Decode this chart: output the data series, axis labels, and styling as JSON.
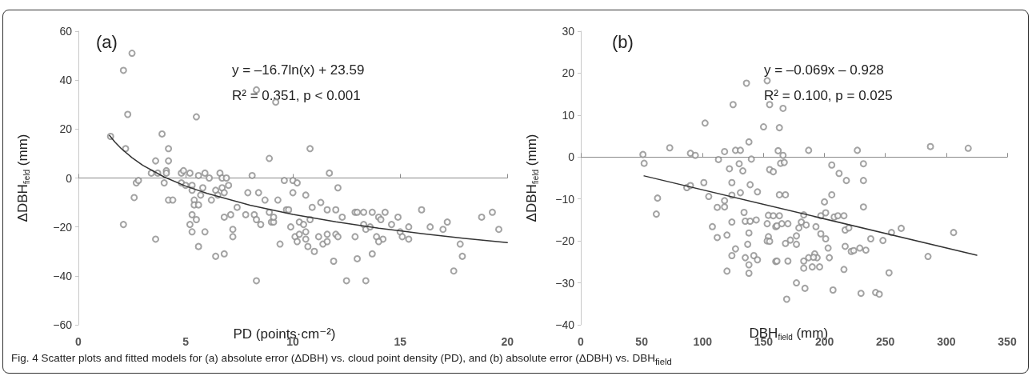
{
  "chart_data": [
    {
      "type": "scatter",
      "xlabel": "PD (points·cm⁻²)",
      "ylabel": "ΔDBH$_{field}$ (mm)",
      "xlim": [
        0,
        20
      ],
      "xticks": [
        0,
        5,
        10,
        15,
        20
      ],
      "ylim": [
        -60,
        60
      ],
      "yticks": [
        -60,
        -40,
        -20,
        0,
        20,
        40,
        60
      ],
      "annotations": [
        "(a)",
        "y = –16.7ln(x) + 23.59",
        "R² = 0.351, p < 0.001",
        "Fig. 4 Scatter plots and fitted models for (a) absolute error (ΔDBH) vs. cloud point density (PD), and (b) absolute error (ΔDBH) vs. DBH$_{field}$"
      ],
      "series": [
        {
          "marker": "circle",
          "color": "#8c8c8c",
          "x": [
            1.5,
            2.1,
            2.5,
            2.3,
            2.2,
            2.1,
            2.6,
            2.7,
            2.8,
            3.6,
            3.6,
            3.9,
            3.4,
            3.7,
            4.0,
            4.1,
            4.2,
            4.2,
            4.1,
            4.2,
            4.4,
            4.8,
            4.8,
            4.9,
            5.2,
            5.0,
            5.3,
            5.3,
            5.5,
            5.6,
            5.9,
            6.1,
            6.6,
            6.7,
            6.9,
            5.8,
            5.7,
            6.2,
            6.4,
            6.5,
            6.7,
            6.8,
            7.0,
            5.4,
            5.4,
            5.6,
            5.3,
            5.5,
            5.2,
            5.3,
            5.9,
            5.6,
            6.4,
            6.8,
            6.8,
            7.1,
            7.2,
            7.2,
            7.4,
            7.8,
            7.9,
            8.1,
            8.2,
            8.3,
            8.4,
            8.5,
            8.3,
            8.3,
            8.7,
            8.9,
            8.9,
            9.0,
            9.1,
            9.1,
            9.2,
            9.3,
            9.4,
            9.6,
            9.7,
            10.8,
            11.7,
            10.0,
            10.2,
            10.0,
            10.6,
            12.1,
            9.8,
            10.9,
            11.3,
            10.3,
            10.5,
            10.8,
            9.9,
            10.6,
            10.1,
            10.3,
            10.2,
            10.6,
            10.7,
            11.0,
            11.6,
            12.0,
            12.3,
            11.2,
            11.6,
            11.4,
            11.6,
            12.0,
            12.1,
            11.9,
            12.9,
            13.0,
            13.3,
            13.7,
            14.3,
            14.0,
            14.1,
            13.3,
            13.4,
            13.6,
            12.9,
            13.9,
            14.2,
            14.0,
            13.0,
            13.7,
            12.5,
            13.4,
            14.9,
            14.6,
            15.0,
            15.4,
            15.1,
            15.4,
            16.0,
            16.4,
            17.0,
            17.2,
            17.8,
            17.9,
            17.5,
            18.8,
            19.3,
            19.6
          ],
          "values": [
            17,
            44,
            51,
            26,
            12,
            -19,
            -8,
            -2,
            -1,
            7,
            -25,
            18,
            2,
            2,
            -2,
            3,
            7,
            12,
            2,
            -9,
            -9,
            2,
            -2,
            3,
            2,
            -3,
            -3,
            -5,
            25,
            1,
            2,
            0,
            2,
            0,
            0,
            -4,
            -7,
            -9,
            -5,
            -7,
            -4,
            -6,
            -3,
            -9,
            -11,
            -11,
            -15,
            -17,
            -19,
            -22,
            -22,
            -28,
            -32,
            -31,
            -16,
            -15,
            -21,
            -24,
            -12,
            -15,
            -6,
            1,
            -15,
            -17,
            -6,
            -19,
            36,
            -42,
            -9,
            8,
            -14,
            -18,
            -18,
            -16,
            31,
            -9,
            -27,
            -1,
            -13,
            12,
            2,
            -1,
            -2,
            -6,
            -7,
            -4,
            -13,
            -12,
            -10,
            -18,
            -19,
            -17,
            -20,
            -22,
            -24,
            -23,
            -26,
            -25,
            -28,
            -30,
            -13,
            -13,
            -16,
            -24,
            -23,
            -27,
            -26,
            -23,
            -24,
            -34,
            -14,
            -14,
            -14,
            -14,
            -14,
            -16,
            -17,
            -19,
            -21,
            -20,
            -24,
            -24,
            -25,
            -26,
            -33,
            -31,
            -42,
            -42,
            -16,
            -19,
            -22,
            -20,
            -24,
            -25,
            -13,
            -20,
            -21,
            -18,
            -27,
            -32,
            -38,
            -16,
            -14,
            -21
          ]
        },
        {
          "type": "line",
          "marker": "none",
          "color": "#333333",
          "x": [
            1.45,
            1.7,
            2,
            2.5,
            3,
            4,
            5,
            6,
            8,
            10,
            12,
            14,
            16,
            18,
            20
          ],
          "values": [
            17.4,
            14.7,
            12.0,
            8.3,
            5.2,
            0.4,
            -3.3,
            -6.3,
            -11.1,
            -14.9,
            -17.9,
            -20.5,
            -22.7,
            -24.7,
            -26.4
          ]
        }
      ]
    },
    {
      "type": "scatter",
      "xlabel": "DBH$_{field}$ (mm)",
      "ylabel": "ΔDBH$_{field}$ (mm)",
      "xlim": [
        0,
        350
      ],
      "xticks": [
        0,
        50,
        100,
        150,
        200,
        250,
        300,
        350
      ],
      "ylim": [
        -40,
        30
      ],
      "yticks": [
        -40,
        -30,
        -20,
        -10,
        0,
        10,
        20,
        30
      ],
      "annotations": [
        "(b)",
        "y = –0.069x – 0.928",
        "R² = 0.100, p = 0.025"
      ],
      "series": [
        {
          "marker": "circle",
          "color": "#8c8c8c",
          "x": [
            51,
            52,
            63,
            62,
            73,
            90,
            94,
            87,
            90,
            102,
            101,
            105,
            108,
            113,
            118,
            112,
            118,
            118,
            112,
            120,
            122,
            125,
            127,
            131,
            124,
            124,
            124,
            127,
            124,
            120,
            130,
            133,
            131,
            136,
            138,
            140,
            139,
            145,
            134,
            135,
            139,
            144,
            138,
            137,
            135,
            138,
            138,
            142,
            145,
            153,
            155,
            150,
            155,
            158,
            154,
            158,
            153,
            154,
            153,
            155,
            160,
            160,
            166,
            163,
            162,
            166,
            164,
            167,
            187,
            227,
            287,
            318,
            206,
            212,
            218,
            232,
            232,
            163,
            168,
            206,
            200,
            232,
            163,
            183,
            197,
            201,
            208,
            211,
            216,
            161,
            165,
            170,
            181,
            185,
            179,
            193,
            217,
            220,
            197,
            177,
            168,
            172,
            177,
            201,
            238,
            248,
            255,
            263,
            306,
            203,
            217,
            222,
            224,
            229,
            234,
            192,
            194,
            187,
            191,
            204,
            183,
            183,
            190,
            196,
            161,
            170,
            216,
            253,
            285,
            177,
            184,
            207,
            230,
            242,
            245,
            169
          ],
          "values": [
            0.6,
            -1.5,
            -9.8,
            -13.6,
            2.2,
            0.9,
            0.4,
            -7.3,
            -6.8,
            8.1,
            -6.1,
            -9.4,
            -16.6,
            -0.6,
            1.3,
            -12.0,
            -11.9,
            -10.4,
            -19.2,
            -18.6,
            -2.8,
            12.5,
            1.6,
            1.6,
            -6.1,
            -9.1,
            -15.5,
            -21.9,
            -23.5,
            -27.2,
            -1.6,
            -3.3,
            -8.5,
            17.6,
            3.6,
            -0.5,
            -6.6,
            -8.3,
            -13.2,
            -15.3,
            -15.3,
            -15.0,
            -18.1,
            -20.8,
            -24.0,
            -25.7,
            -27.7,
            -23.5,
            -24.5,
            18.2,
            12.5,
            7.2,
            -3.0,
            -3.5,
            -13.9,
            -14.0,
            -15.9,
            -19.0,
            -20.0,
            -20.1,
            -16.6,
            -24.9,
            11.6,
            7.0,
            1.5,
            0.4,
            -1.5,
            -1.3,
            1.6,
            1.6,
            2.5,
            2.1,
            -1.9,
            -3.9,
            -5.6,
            -1.6,
            -5.6,
            -9.0,
            -9.0,
            -9.0,
            -10.7,
            -11.9,
            -14.0,
            -13.8,
            -14.0,
            -13.3,
            -14.3,
            -14.0,
            -14.0,
            -16.4,
            -15.9,
            -15.9,
            -15.5,
            -16.2,
            -16.9,
            -16.6,
            -17.4,
            -16.9,
            -18.3,
            -18.8,
            -20.6,
            -19.8,
            -20.8,
            -19.5,
            -19.5,
            -19.9,
            -18.0,
            -17.0,
            -18.0,
            -21.7,
            -21.3,
            -22.5,
            -22.3,
            -21.7,
            -22.2,
            -23.1,
            -24.0,
            -24.0,
            -23.9,
            -24.0,
            -24.8,
            -26.5,
            -26.2,
            -26.2,
            -24.8,
            -24.8,
            -26.8,
            -27.6,
            -23.7,
            -30.0,
            -31.3,
            -31.7,
            -32.5,
            -32.3,
            -32.7,
            -33.9
          ]
        },
        {
          "type": "line",
          "marker": "none",
          "color": "#333333",
          "x": [
            52,
            325
          ],
          "values": [
            -4.5,
            -23.4
          ]
        }
      ]
    }
  ]
}
